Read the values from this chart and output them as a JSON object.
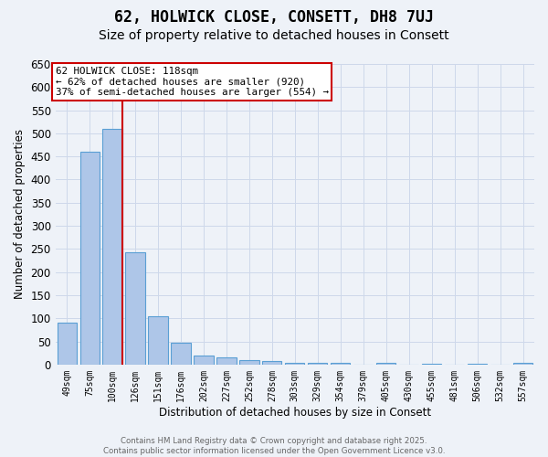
{
  "title": "62, HOLWICK CLOSE, CONSETT, DH8 7UJ",
  "subtitle": "Size of property relative to detached houses in Consett",
  "xlabel": "Distribution of detached houses by size in Consett",
  "ylabel": "Number of detached properties",
  "categories": [
    "49sqm",
    "75sqm",
    "100sqm",
    "126sqm",
    "151sqm",
    "176sqm",
    "202sqm",
    "227sqm",
    "252sqm",
    "278sqm",
    "303sqm",
    "329sqm",
    "354sqm",
    "379sqm",
    "405sqm",
    "430sqm",
    "455sqm",
    "481sqm",
    "506sqm",
    "532sqm",
    "557sqm"
  ],
  "values": [
    90,
    460,
    510,
    243,
    105,
    48,
    20,
    15,
    10,
    8,
    3,
    4,
    3,
    0,
    3,
    0,
    2,
    0,
    2,
    0,
    4
  ],
  "bar_color": "#aec6e8",
  "bar_edge_color": "#5a9fd4",
  "grid_color": "#ced8ea",
  "background_color": "#eef2f8",
  "vline_color": "#cc0000",
  "annotation_text": "62 HOLWICK CLOSE: 118sqm\n← 62% of detached houses are smaller (920)\n37% of semi-detached houses are larger (554) →",
  "annotation_box_color": "#cc0000",
  "ylim": [
    0,
    650
  ],
  "yticks": [
    0,
    50,
    100,
    150,
    200,
    250,
    300,
    350,
    400,
    450,
    500,
    550,
    600,
    650
  ],
  "footer_line1": "Contains HM Land Registry data © Crown copyright and database right 2025.",
  "footer_line2": "Contains public sector information licensed under the Open Government Licence v3.0.",
  "title_fontsize": 12,
  "subtitle_fontsize": 10,
  "bar_width": 0.85,
  "vline_bar_index": 2
}
